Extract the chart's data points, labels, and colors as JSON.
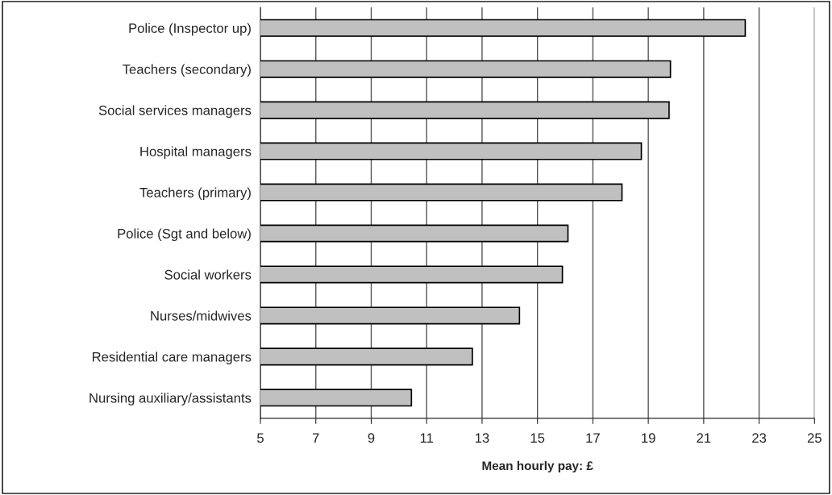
{
  "chart_data": {
    "type": "bar",
    "orientation": "horizontal",
    "xlabel": "Mean hourly pay: £",
    "categories": [
      "Police (Inspector up)",
      "Teachers (secondary)",
      "Social services managers",
      "Hospital managers",
      "Teachers (primary)",
      "Police (Sgt and below)",
      "Social workers",
      "Nurses/midwives",
      "Residential care managers",
      "Nursing auxiliary/assistants"
    ],
    "values": [
      22.5,
      19.8,
      19.75,
      18.75,
      18.05,
      16.1,
      15.9,
      14.35,
      12.65,
      10.45
    ],
    "color": "#c0c0c0",
    "xlim": [
      5,
      25
    ],
    "xticks": [
      5,
      7,
      9,
      11,
      13,
      15,
      17,
      19,
      21,
      23,
      25
    ],
    "grid": "x"
  }
}
